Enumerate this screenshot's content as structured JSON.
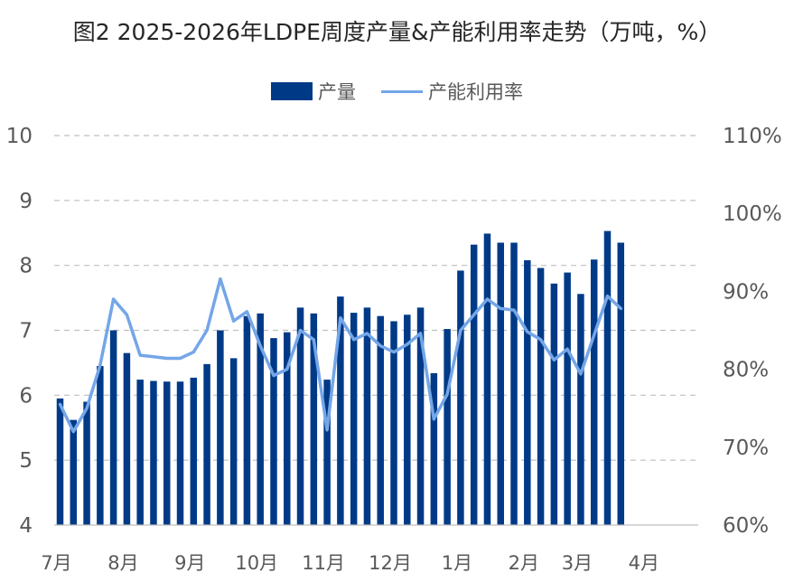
{
  "chart_data": {
    "type": "bar",
    "title": "图2  2025-2026年LDPE周度产量&产能利用率走势（万吨，%）",
    "legend": {
      "position": "top",
      "bar_label": "产量",
      "line_label": "产能利用率"
    },
    "x_tick_labels": [
      "7月",
      "8月",
      "9月",
      "10月",
      "11月",
      "12月",
      "1月",
      "2月",
      "3月",
      "4月"
    ],
    "x_tick_bar_index": [
      0,
      5,
      10,
      15,
      20,
      25,
      30,
      35,
      39,
      44
    ],
    "y_left": {
      "min": 4,
      "max": 10,
      "step": 1,
      "ticks": [
        "4",
        "5",
        "6",
        "7",
        "8",
        "9",
        "10"
      ]
    },
    "y_right": {
      "min": 60,
      "max": 110,
      "step": 10,
      "ticks": [
        "60%",
        "70%",
        "80%",
        "90%",
        "100%",
        "110%"
      ]
    },
    "grid": "horizontal dashed",
    "series": [
      {
        "name": "产量",
        "type": "bar",
        "axis": "left",
        "values": [
          5.95,
          5.62,
          5.9,
          6.45,
          7.0,
          6.65,
          6.24,
          6.22,
          6.21,
          6.21,
          6.27,
          6.48,
          7.0,
          6.57,
          7.22,
          7.26,
          6.88,
          6.97,
          7.35,
          7.26,
          6.24,
          7.52,
          7.27,
          7.35,
          7.22,
          7.14,
          7.24,
          7.35,
          6.34,
          7.02,
          7.92,
          8.32,
          8.49,
          8.35,
          8.35,
          8.08,
          7.96,
          7.72,
          7.89,
          7.56,
          8.09,
          8.53,
          8.35
        ]
      },
      {
        "name": "产能利用率",
        "type": "line",
        "axis": "right",
        "values": [
          75.5,
          72.0,
          75.0,
          80.5,
          89.0,
          87.0,
          81.8,
          81.6,
          81.4,
          81.4,
          82.2,
          85.0,
          91.6,
          86.2,
          87.4,
          83.0,
          79.2,
          80.0,
          85.0,
          83.8,
          72.2,
          86.6,
          83.8,
          84.6,
          83.0,
          82.2,
          83.2,
          84.6,
          73.6,
          76.8,
          85.0,
          87.0,
          89.0,
          87.8,
          87.6,
          84.8,
          83.8,
          81.2,
          82.6,
          79.4,
          84.4,
          89.4,
          87.8
        ]
      }
    ],
    "colors": {
      "bar": "#003a87",
      "line": "#74a6e8",
      "grid": "#bfbfbf",
      "tick_text": "#595959",
      "title": "#262626"
    }
  }
}
